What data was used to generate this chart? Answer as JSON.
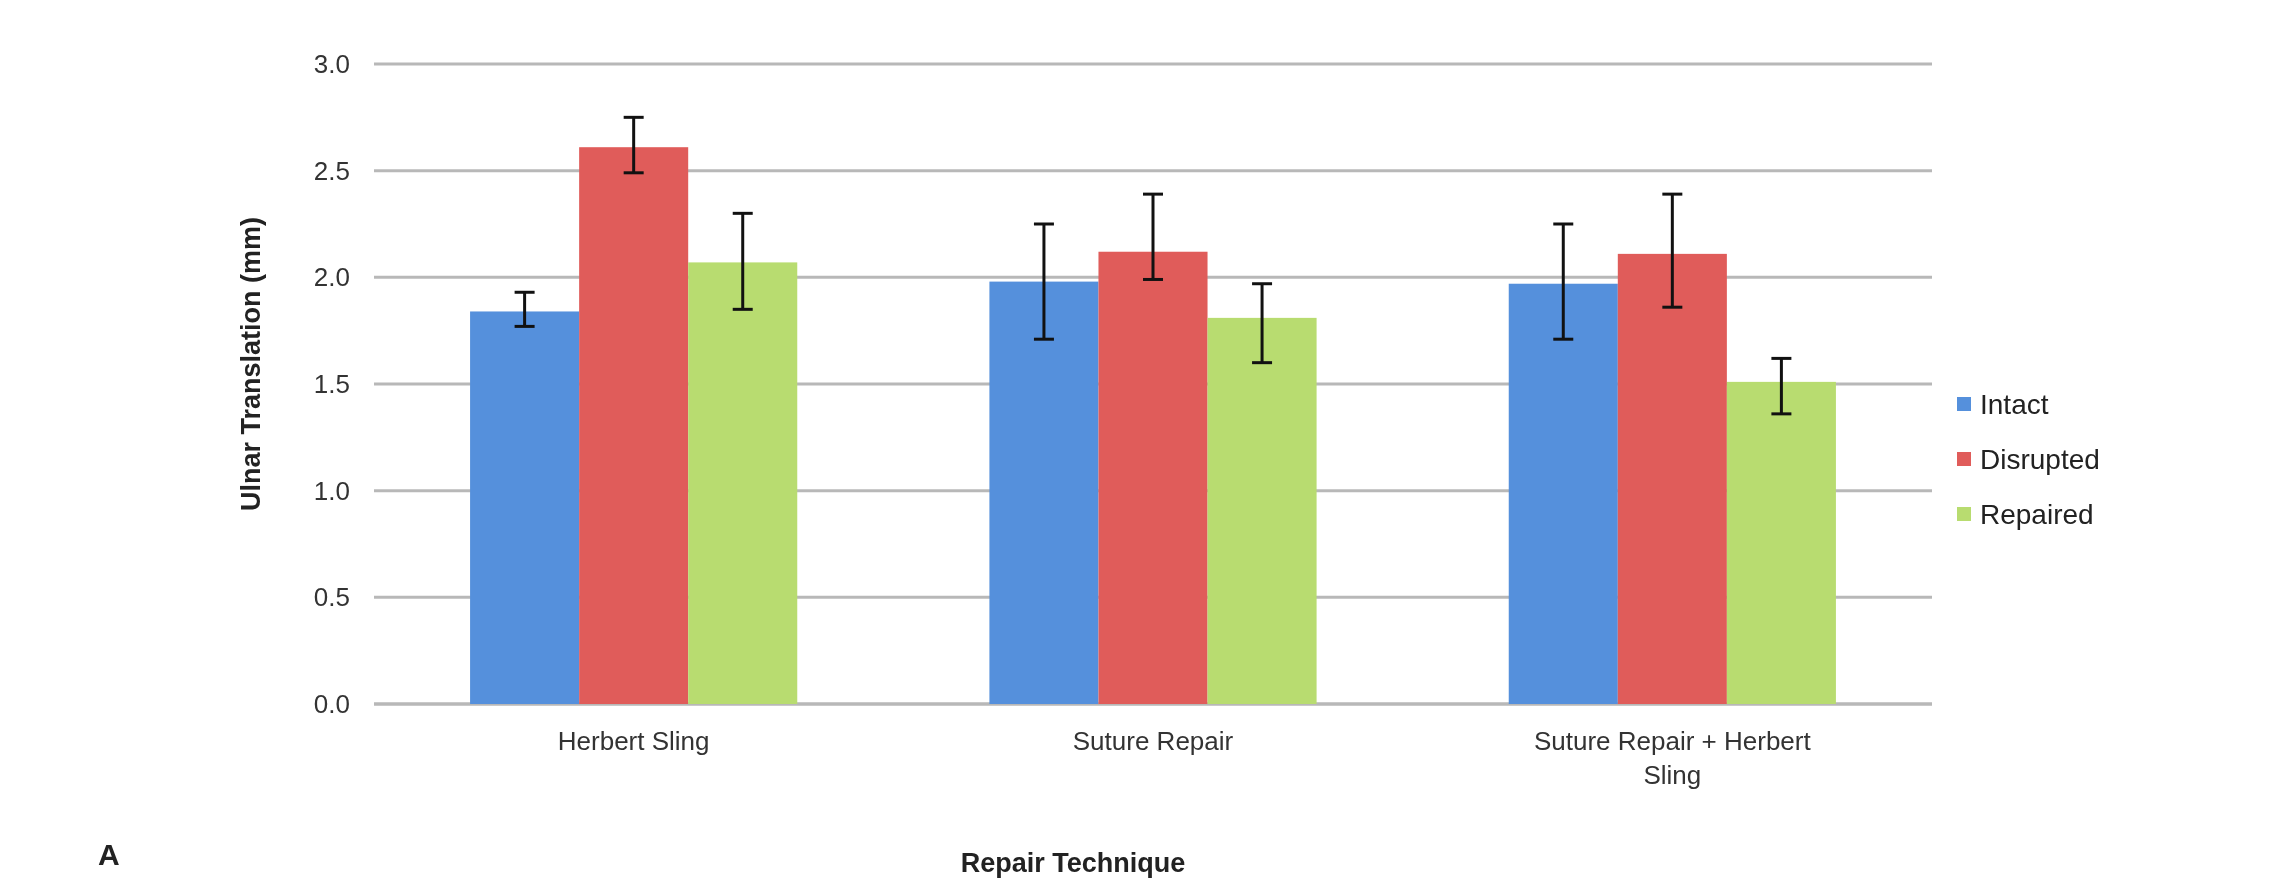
{
  "chart_data": {
    "type": "bar",
    "xlabel": "Repair Technique",
    "ylabel": "Ulnar Translation (mm)",
    "annotations": [
      "A"
    ],
    "categories": [
      "Herbert Sling",
      "Suture Repair",
      "Suture Repair + Herbert Sling"
    ],
    "series": [
      {
        "name": "Intact",
        "color": "#5590dc",
        "values": [
          1.84,
          1.98,
          1.97
        ],
        "errors": [
          [
            1.77,
            1.93
          ],
          [
            1.71,
            2.25
          ],
          [
            1.71,
            2.25
          ]
        ]
      },
      {
        "name": "Disrupted",
        "color": "#e05c5a",
        "values": [
          2.61,
          2.12,
          2.11
        ],
        "errors": [
          [
            2.49,
            2.75
          ],
          [
            1.99,
            2.39
          ],
          [
            1.86,
            2.39
          ]
        ]
      },
      {
        "name": "Repaired",
        "color": "#b8dc70",
        "values": [
          2.07,
          1.81,
          1.51
        ],
        "errors": [
          [
            1.85,
            2.3
          ],
          [
            1.6,
            1.97
          ],
          [
            1.36,
            1.62
          ]
        ]
      }
    ],
    "ylim": [
      0,
      3
    ],
    "yticks": [
      {
        "value": 0,
        "label": "0.0"
      },
      {
        "value": 0.5,
        "label": "0.5"
      },
      {
        "value": 1,
        "label": "1.0"
      },
      {
        "value": 1.5,
        "label": "1.5"
      },
      {
        "value": 2,
        "label": "2.0"
      },
      {
        "value": 2.5,
        "label": "2.5"
      },
      {
        "value": 3,
        "label": "3.0"
      }
    ],
    "grid": "y",
    "legend": "right"
  }
}
